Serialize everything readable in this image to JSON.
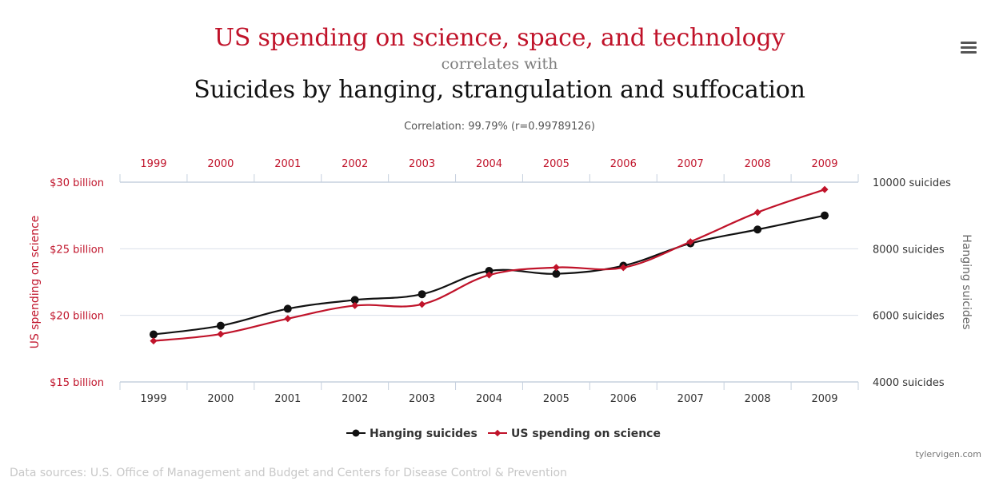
{
  "header": {
    "title_main": "US spending on science, space, and technology",
    "title_mid": "correlates with",
    "title_second": "Suicides by hanging, strangulation and suffocation",
    "correlation": "Correlation: 99.79% (r=0.99789126)"
  },
  "footer": {
    "credit": "tylervigen.com",
    "sources": "Data sources: U.S. Office of Management and Budget and Centers for Disease Control & Prevention"
  },
  "colors": {
    "science": "#c0132a",
    "hanging": "#111111",
    "axis_label_left": "#c0132a",
    "axis_label_right": "#666666",
    "grid": "#d8dee8"
  },
  "icons": {
    "menu": "hamburger-menu-icon"
  },
  "chart_data": {
    "type": "line",
    "x": [
      "1999",
      "2000",
      "2001",
      "2002",
      "2003",
      "2004",
      "2005",
      "2006",
      "2007",
      "2008",
      "2009"
    ],
    "series": [
      {
        "name": "Hanging suicides",
        "axis": "right",
        "color": "#111111",
        "marker": "circle",
        "values": [
          5427,
          5688,
          6198,
          6462,
          6635,
          7336,
          7248,
          7491,
          8161,
          8578,
          9000
        ]
      },
      {
        "name": "US spending on science",
        "axis": "left",
        "color": "#c0132a",
        "marker": "diamond",
        "values": [
          18.079,
          18.594,
          19.753,
          20.734,
          20.831,
          23.029,
          23.597,
          23.584,
          25.525,
          27.731,
          29.449
        ]
      }
    ],
    "left_axis": {
      "label": "US spending on science",
      "ticks": [
        "$15 billion",
        "$20 billion",
        "$25 billion",
        "$30 billion"
      ],
      "tick_values": [
        15,
        20,
        25,
        30
      ],
      "range": [
        15,
        30
      ]
    },
    "right_axis": {
      "label": "Hanging suicides",
      "ticks": [
        "4000 suicides",
        "6000 suicides",
        "8000 suicides",
        "10000 suicides"
      ],
      "tick_values": [
        4000,
        6000,
        8000,
        10000
      ],
      "range": [
        4000,
        10000
      ]
    },
    "top_axis_labels": [
      "1999",
      "2000",
      "2001",
      "2002",
      "2003",
      "2004",
      "2005",
      "2006",
      "2007",
      "2008",
      "2009"
    ],
    "bottom_axis_labels": [
      "1999",
      "2000",
      "2001",
      "2002",
      "2003",
      "2004",
      "2005",
      "2006",
      "2007",
      "2008",
      "2009"
    ],
    "legend": {
      "position": "bottom-center",
      "items": [
        "Hanging suicides",
        "US spending on science"
      ]
    },
    "grid": true
  }
}
